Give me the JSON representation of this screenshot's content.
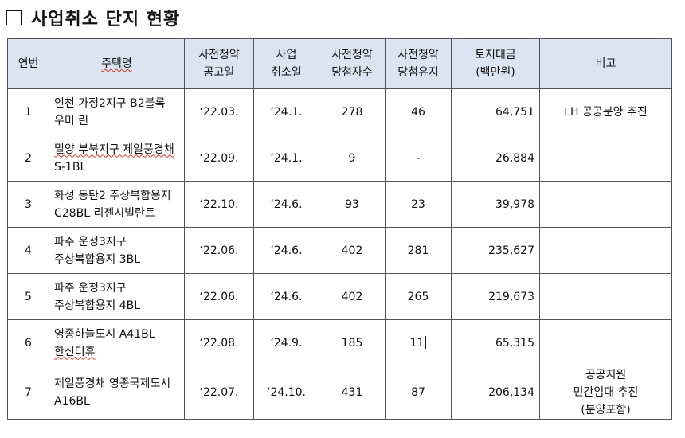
{
  "section": {
    "title": "사업취소 단지 현황"
  },
  "table": {
    "headers": {
      "no": "연번",
      "name": "주택명",
      "announce_line1": "사전청약",
      "announce_line2": "공고일",
      "cancel_line1": "사업",
      "cancel_line2": "취소일",
      "winners_line1": "사전청약",
      "winners_line2": "당첨자수",
      "kept_line1": "사전청약",
      "kept_line2": "당첨유지",
      "land_line1": "토지대금",
      "land_line2": "(백만원)",
      "note": "비고"
    },
    "rows": [
      {
        "no": "1",
        "name_line1": "인천 가정2지구 B2블록",
        "name_line2": "우미 린",
        "announce": "‘22.03.",
        "cancel": "‘24.1.",
        "winners": "278",
        "kept": "46",
        "land": "64,751",
        "note_lines": [
          "LH 공공분양 추진"
        ]
      },
      {
        "no": "2",
        "name_line1": "밀양 부북지구 제일풍경채",
        "name_line2": "S-1BL",
        "announce": "‘22.09.",
        "cancel": "‘24.1.",
        "winners": "9",
        "kept": "-",
        "land": "26,884",
        "note_lines": []
      },
      {
        "no": "3",
        "name_line1": "화성 동탄2 주상복합용지",
        "name_line2": "C28BL 리젠시빌란트",
        "announce": "‘22.10.",
        "cancel": "‘24.6.",
        "winners": "93",
        "kept": "23",
        "land": "39,978",
        "note_lines": []
      },
      {
        "no": "4",
        "name_line1": "파주 운정3지구",
        "name_line2": "주상복합용지 3BL",
        "announce": "‘22.06.",
        "cancel": "‘24.6.",
        "winners": "402",
        "kept": "281",
        "land": "235,627",
        "note_lines": []
      },
      {
        "no": "5",
        "name_line1": "파주 운정3지구",
        "name_line2": "주상복합용지 4BL",
        "announce": "‘22.06.",
        "cancel": "‘24.6.",
        "winners": "402",
        "kept": "265",
        "land": "219,673",
        "note_lines": []
      },
      {
        "no": "6",
        "name_line1": "영종하늘도시 A41BL",
        "name_line2": "한신더휴",
        "announce": "‘22.08.",
        "cancel": "‘24.9.",
        "winners": "185",
        "kept": "11",
        "land": "65,315",
        "note_lines": []
      },
      {
        "no": "7",
        "name_line1": "제일풍경채 영종국제도시",
        "name_line2": "A16BL",
        "announce": "‘22.07.",
        "cancel": "‘24.10.",
        "winners": "431",
        "kept": "87",
        "land": "206,134",
        "note_lines": [
          "공공지원",
          "민간임대 추진",
          "(분양포함)"
        ]
      }
    ]
  }
}
